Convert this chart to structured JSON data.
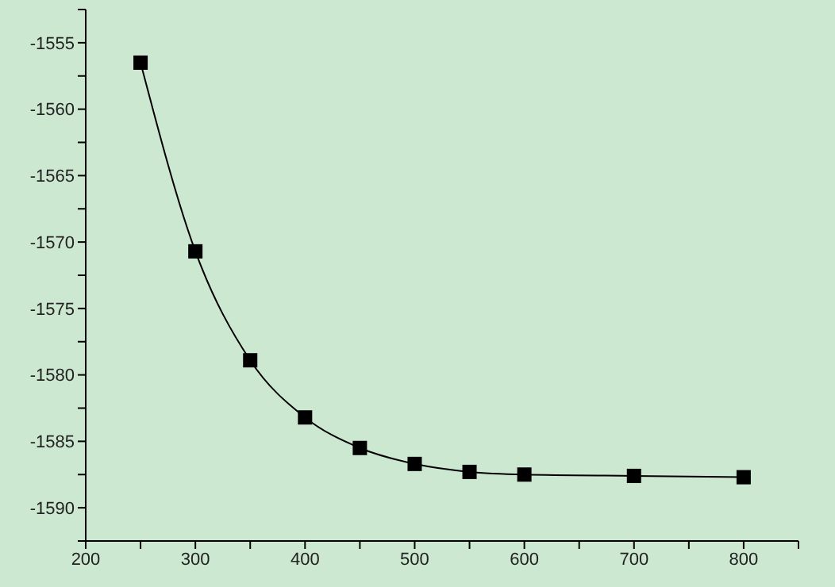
{
  "chart_data": {
    "type": "line",
    "x": [
      250,
      300,
      350,
      400,
      450,
      500,
      550,
      600,
      700,
      800
    ],
    "series": [
      {
        "color": "#000000",
        "values": [
          -1556.5,
          -1570.7,
          -1578.9,
          -1583.2,
          -1585.5,
          -1586.7,
          -1587.3,
          -1587.5,
          -1587.6,
          -1587.7
        ]
      }
    ],
    "xlim": [
      200,
      850
    ],
    "xticks": [
      200,
      {
        "value": 250,
        "label": null
      },
      300,
      {
        "value": 350,
        "label": null
      },
      400,
      {
        "value": 450,
        "label": null
      },
      500,
      {
        "value": 550,
        "label": null
      },
      600,
      {
        "value": 650,
        "label": null
      },
      700,
      {
        "value": 750,
        "label": null
      },
      800,
      {
        "value": 850,
        "label": null
      }
    ],
    "ylim": [
      -1592.5,
      -1552.5
    ],
    "yticks": [
      {
        "value": -1592.5,
        "label": null
      },
      -1590,
      {
        "value": -1587.5,
        "label": null
      },
      -1585,
      {
        "value": -1582.5,
        "label": null
      },
      -1580,
      {
        "value": -1577.5,
        "label": null
      },
      -1575,
      {
        "value": -1572.5,
        "label": null
      },
      -1570,
      {
        "value": -1567.5,
        "label": null
      },
      -1565,
      {
        "value": -1562.5,
        "label": null
      },
      -1560,
      {
        "value": -1557.5,
        "label": null
      },
      -1555,
      {
        "value": -1552.5,
        "label": null
      }
    ],
    "grid": false,
    "legend": false,
    "marker": "square",
    "line_style": "solid"
  }
}
